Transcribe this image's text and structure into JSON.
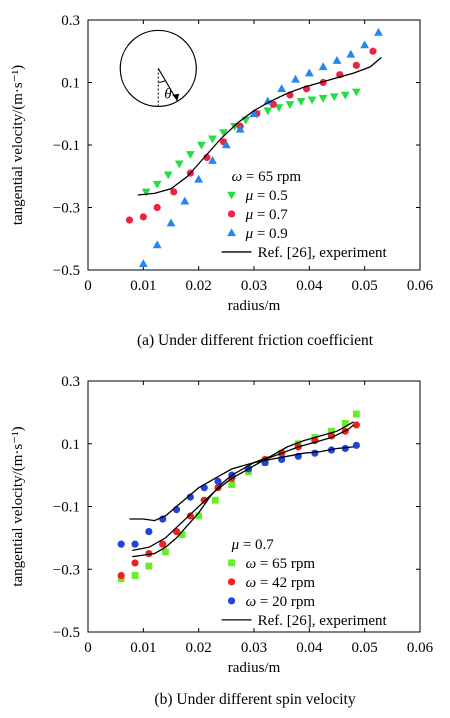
{
  "figure": {
    "caption_a": "(a) Under different friction coefficient",
    "caption_b": "(b) Under different spin velocity"
  },
  "chart_data": [
    {
      "type": "scatter",
      "panel": "a",
      "xlabel": "radius/m",
      "ylabel": "tangential velocity/(m·s⁻¹)",
      "xlim": [
        0,
        0.06
      ],
      "ylim": [
        -0.5,
        0.3
      ],
      "xticks": [
        "0",
        "0.01",
        "0.02",
        "0.03",
        "0.04",
        "0.05",
        "0.06"
      ],
      "yticks": [
        "0.3",
        "0.1",
        "−0.1",
        "−0.3",
        "−0.5"
      ],
      "inset": {
        "symbol": "θ"
      },
      "legend": {
        "placement": "bottom-right",
        "header_sym": "ω",
        "header_rest": " = 65 rpm",
        "entries": [
          {
            "sym": "μ",
            "rest": " = 0.5",
            "marker": "triangle-down",
            "color": "#22dd44"
          },
          {
            "sym": "μ",
            "rest": " = 0.7",
            "marker": "circle",
            "color": "#ee2244"
          },
          {
            "sym": "μ",
            "rest": " = 0.9",
            "marker": "triangle-up",
            "color": "#2288ee"
          },
          {
            "sym": "",
            "rest": "Ref. [26], experiment",
            "marker": "line",
            "color": "#000000"
          }
        ]
      },
      "series": [
        {
          "name": "μ = 0.5",
          "marker": "triangle-down",
          "color": "#22dd44",
          "x": [
            0.0105,
            0.0125,
            0.0145,
            0.0165,
            0.0185,
            0.0205,
            0.0225,
            0.0245,
            0.0265,
            0.0285,
            0.0305,
            0.0325,
            0.0345,
            0.0365,
            0.0385,
            0.0405,
            0.0425,
            0.0445,
            0.0465,
            0.0485
          ],
          "y": [
            -0.25,
            -0.225,
            -0.195,
            -0.16,
            -0.13,
            -0.1,
            -0.08,
            -0.06,
            -0.04,
            -0.02,
            0.0,
            0.01,
            0.02,
            0.03,
            0.04,
            0.045,
            0.05,
            0.055,
            0.06,
            0.07
          ]
        },
        {
          "name": "μ = 0.7",
          "marker": "circle",
          "color": "#ee2244",
          "x": [
            0.0075,
            0.01,
            0.0125,
            0.0155,
            0.0185,
            0.0215,
            0.0245,
            0.0275,
            0.0305,
            0.0335,
            0.0365,
            0.0395,
            0.0425,
            0.0455,
            0.0485,
            0.0515
          ],
          "y": [
            -0.34,
            -0.33,
            -0.3,
            -0.25,
            -0.19,
            -0.14,
            -0.09,
            -0.04,
            0.0,
            0.03,
            0.06,
            0.08,
            0.1,
            0.125,
            0.155,
            0.2
          ]
        },
        {
          "name": "μ = 0.9",
          "marker": "triangle-up",
          "color": "#2288ee",
          "x": [
            0.01,
            0.0125,
            0.015,
            0.0175,
            0.02,
            0.0225,
            0.025,
            0.0275,
            0.03,
            0.0325,
            0.035,
            0.0375,
            0.04,
            0.0425,
            0.045,
            0.0475,
            0.05,
            0.0525
          ],
          "y": [
            -0.48,
            -0.42,
            -0.35,
            -0.28,
            -0.21,
            -0.15,
            -0.1,
            -0.05,
            0.0,
            0.04,
            0.08,
            0.11,
            0.13,
            0.15,
            0.17,
            0.19,
            0.22,
            0.26
          ]
        },
        {
          "name": "Ref. [26], experiment",
          "marker": "line",
          "color": "#000000",
          "x": [
            0.009,
            0.012,
            0.015,
            0.018,
            0.021,
            0.024,
            0.027,
            0.03,
            0.033,
            0.036,
            0.039,
            0.042,
            0.045,
            0.048,
            0.051,
            0.053
          ],
          "y": [
            -0.26,
            -0.255,
            -0.24,
            -0.2,
            -0.14,
            -0.08,
            -0.03,
            0.01,
            0.04,
            0.065,
            0.085,
            0.1,
            0.115,
            0.13,
            0.15,
            0.18
          ]
        }
      ]
    },
    {
      "type": "scatter",
      "panel": "b",
      "xlabel": "radius/m",
      "ylabel": "tangential velocity/(m·s⁻¹)",
      "xlim": [
        0,
        0.06
      ],
      "ylim": [
        -0.5,
        0.3
      ],
      "xticks": [
        "0",
        "0.01",
        "0.02",
        "0.03",
        "0.04",
        "0.05",
        "0.06"
      ],
      "yticks": [
        "0.3",
        "0.1",
        "−0.1",
        "−0.3",
        "−0.5"
      ],
      "legend": {
        "placement": "bottom-right",
        "header_sym": "μ",
        "header_rest": " = 0.7",
        "entries": [
          {
            "sym": "ω",
            "rest": " = 65 rpm",
            "marker": "square",
            "color": "#66ee22"
          },
          {
            "sym": "ω",
            "rest": " = 42 rpm",
            "marker": "circle",
            "color": "#ee2222"
          },
          {
            "sym": "ω",
            "rest": " = 20 rpm",
            "marker": "circle",
            "color": "#2244dd"
          },
          {
            "sym": "",
            "rest": "Ref. [26], experiment",
            "marker": "line",
            "color": "#000000"
          }
        ]
      },
      "series": [
        {
          "name": "ω = 65 rpm",
          "marker": "square",
          "color": "#66ee22",
          "x": [
            0.006,
            0.0085,
            0.011,
            0.014,
            0.017,
            0.02,
            0.023,
            0.026,
            0.029,
            0.032,
            0.035,
            0.038,
            0.041,
            0.044,
            0.0465,
            0.0485
          ],
          "y": [
            -0.33,
            -0.32,
            -0.29,
            -0.245,
            -0.19,
            -0.13,
            -0.08,
            -0.03,
            0.01,
            0.04,
            0.07,
            0.1,
            0.12,
            0.14,
            0.165,
            0.195
          ]
        },
        {
          "name": "ω = 42 rpm",
          "marker": "circle",
          "color": "#ee2222",
          "x": [
            0.006,
            0.0085,
            0.011,
            0.0135,
            0.016,
            0.0185,
            0.021,
            0.0235,
            0.026,
            0.029,
            0.032,
            0.035,
            0.038,
            0.041,
            0.044,
            0.0465,
            0.0485
          ],
          "y": [
            -0.32,
            -0.28,
            -0.25,
            -0.22,
            -0.18,
            -0.13,
            -0.08,
            -0.04,
            -0.01,
            0.02,
            0.05,
            0.07,
            0.09,
            0.11,
            0.125,
            0.14,
            0.16
          ]
        },
        {
          "name": "ω = 20 rpm",
          "marker": "circle",
          "color": "#2244dd",
          "x": [
            0.006,
            0.0085,
            0.011,
            0.0135,
            0.016,
            0.0185,
            0.021,
            0.0235,
            0.026,
            0.029,
            0.032,
            0.035,
            0.038,
            0.041,
            0.044,
            0.0465,
            0.0485
          ],
          "y": [
            -0.22,
            -0.22,
            -0.18,
            -0.14,
            -0.11,
            -0.07,
            -0.04,
            -0.02,
            0.0,
            0.02,
            0.04,
            0.05,
            0.06,
            0.07,
            0.08,
            0.085,
            0.095
          ]
        },
        {
          "name": "Ref. [26], experiment",
          "marker": "line",
          "color": "#000000",
          "x": [
            0.008,
            0.01,
            0.012,
            0.014,
            0.016,
            0.018,
            0.02,
            0.022,
            0.024,
            0.026,
            0.028,
            0.03,
            0.033,
            0.036,
            0.039,
            0.042,
            0.045,
            0.048
          ],
          "y": [
            -0.26,
            -0.255,
            -0.25,
            -0.23,
            -0.2,
            -0.16,
            -0.12,
            -0.07,
            -0.03,
            0.0,
            0.02,
            0.04,
            0.06,
            0.09,
            0.11,
            0.125,
            0.14,
            0.17
          ]
        },
        {
          "name": "Ref. [26], experiment",
          "marker": "line",
          "color": "#000000",
          "x": [
            0.008,
            0.011,
            0.014,
            0.017,
            0.02,
            0.023,
            0.026,
            0.029,
            0.032,
            0.035,
            0.038,
            0.041,
            0.044,
            0.047,
            0.048
          ],
          "y": [
            -0.24,
            -0.23,
            -0.2,
            -0.15,
            -0.1,
            -0.05,
            -0.01,
            0.02,
            0.05,
            0.07,
            0.09,
            0.105,
            0.12,
            0.145,
            0.16
          ]
        },
        {
          "name": "Ref. [26], experiment",
          "marker": "line",
          "color": "#000000",
          "x": [
            0.0075,
            0.01,
            0.012,
            0.014,
            0.016,
            0.018,
            0.02,
            0.022,
            0.024,
            0.026,
            0.028,
            0.03,
            0.033,
            0.036,
            0.039,
            0.042,
            0.045,
            0.048
          ],
          "y": [
            -0.14,
            -0.14,
            -0.145,
            -0.13,
            -0.1,
            -0.07,
            -0.04,
            -0.02,
            0.0,
            0.02,
            0.03,
            0.04,
            0.05,
            0.06,
            0.07,
            0.075,
            0.085,
            0.09
          ]
        }
      ]
    }
  ]
}
